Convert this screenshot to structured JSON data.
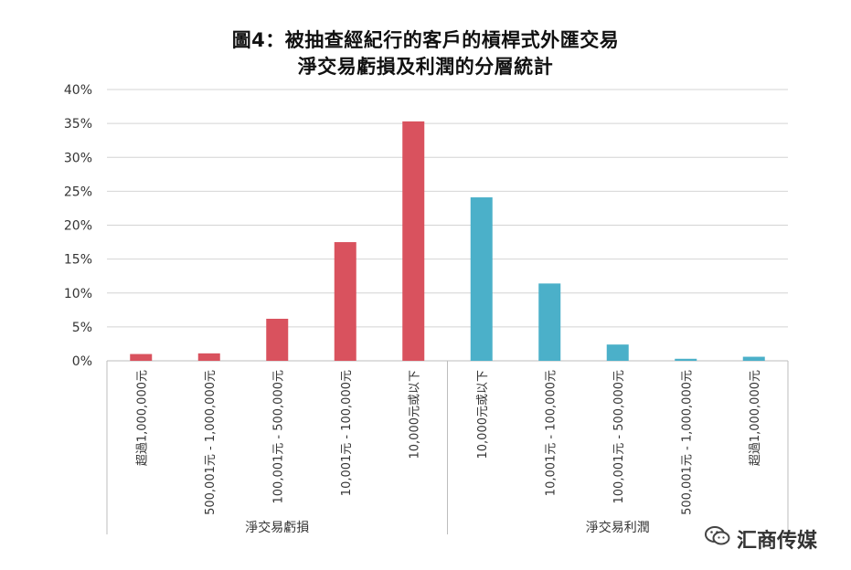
{
  "chart_data": {
    "type": "bar",
    "title_line1": "圖4：被抽查經紀行的客戶的槓桿式外匯交易",
    "title_line2": "淨交易虧損及利潤的分層統計",
    "ylim": [
      0,
      40
    ],
    "y_ticks": [
      "0%",
      "5%",
      "10%",
      "15%",
      "20%",
      "25%",
      "30%",
      "35%",
      "40%"
    ],
    "grid": true,
    "groups": [
      {
        "label": "淨交易虧損",
        "color": "#d9525e",
        "categories": [
          "超過1,000,000元",
          "500,001元 - 1,000,000元",
          "100,001元 - 500,000元",
          "10,001元 - 100,000元",
          "10,000元或以下"
        ],
        "values": [
          1.0,
          1.1,
          6.2,
          17.5,
          35.3
        ]
      },
      {
        "label": "淨交易利潤",
        "color": "#4bb0c9",
        "categories": [
          "10,000元或以下",
          "10,001元 - 100,000元",
          "100,001元 - 500,000元",
          "500,001元 - 1,000,000元",
          "超過1,000,000元"
        ],
        "values": [
          24.1,
          11.4,
          2.4,
          0.3,
          0.6
        ]
      }
    ]
  },
  "watermark": {
    "text": "汇商传媒",
    "icon": "wechat-icon"
  }
}
